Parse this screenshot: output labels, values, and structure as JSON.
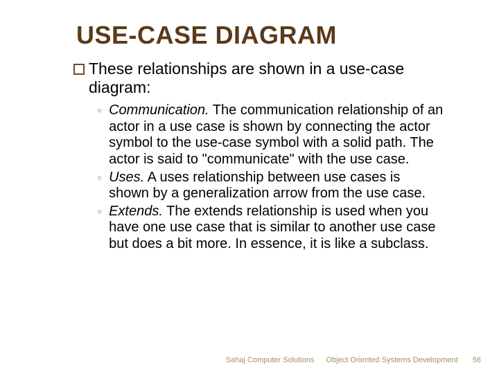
{
  "title": "USE-CASE DIAGRAM",
  "main_bullet": "These relationships are shown in a use-case diagram:",
  "subs": [
    {
      "term": "Communication.",
      "text": " The communication relationship of an actor in a use case is shown by connecting the actor symbol to the use-case symbol with a solid path. The actor is said to \"communicate\" with the use case."
    },
    {
      "term": "Uses.",
      "text": " A uses relationship between use cases is shown by a generalization arrow from the use case."
    },
    {
      "term": "Extends.",
      "text": " The extends relationship is used when you have one use case that is similar to another use case but does a bit more. In essence, it is like a subclass."
    }
  ],
  "footer": {
    "org": "Sahaj Computer Solutions",
    "course": "Object Oriented Systems Development",
    "page": "56"
  },
  "colors": {
    "title": "#5a3a1a",
    "bullet_border": "#6b4a2a",
    "sub_bullet": "#a88b6a",
    "footer": "#a88b6a",
    "text": "#000000",
    "background": "#ffffff"
  },
  "fonts": {
    "title_size": 36,
    "main_size": 23,
    "sub_size": 20,
    "footer_size": 11
  }
}
